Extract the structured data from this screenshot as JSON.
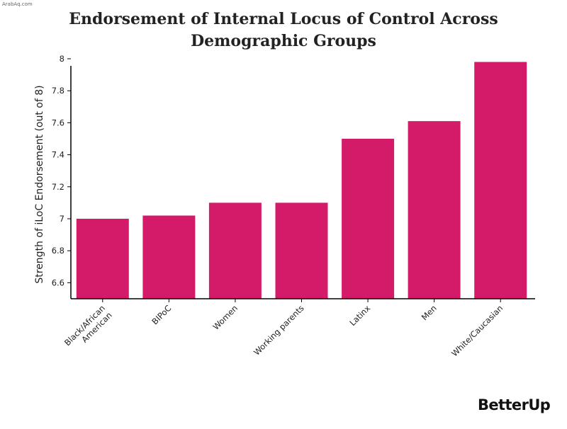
{
  "watermark": "ArabAq.com",
  "brand": "BetterUp",
  "colors": {
    "bar": "#d31b6a",
    "axis": "#000000",
    "text": "#222222"
  },
  "chart_data": {
    "type": "bar",
    "title": "Endorsement of Internal Locus of Control Across Demographic Groups",
    "xlabel": "",
    "ylabel": "Strength of iLoC Endorsement (out of 8)",
    "categories": [
      "Black/African American",
      "BIPoC",
      "Women",
      "Working parents",
      "Latinx",
      "Men",
      "White/Caucasian"
    ],
    "values": [
      7.0,
      7.02,
      7.1,
      7.1,
      7.5,
      7.61,
      7.98
    ],
    "ylim": [
      6.5,
      8.0
    ],
    "yticks": [
      "6.6",
      "6.8",
      "7",
      "7.2",
      "7.4",
      "7.6",
      "7.8",
      "8"
    ],
    "grid": false,
    "legend": "none"
  }
}
